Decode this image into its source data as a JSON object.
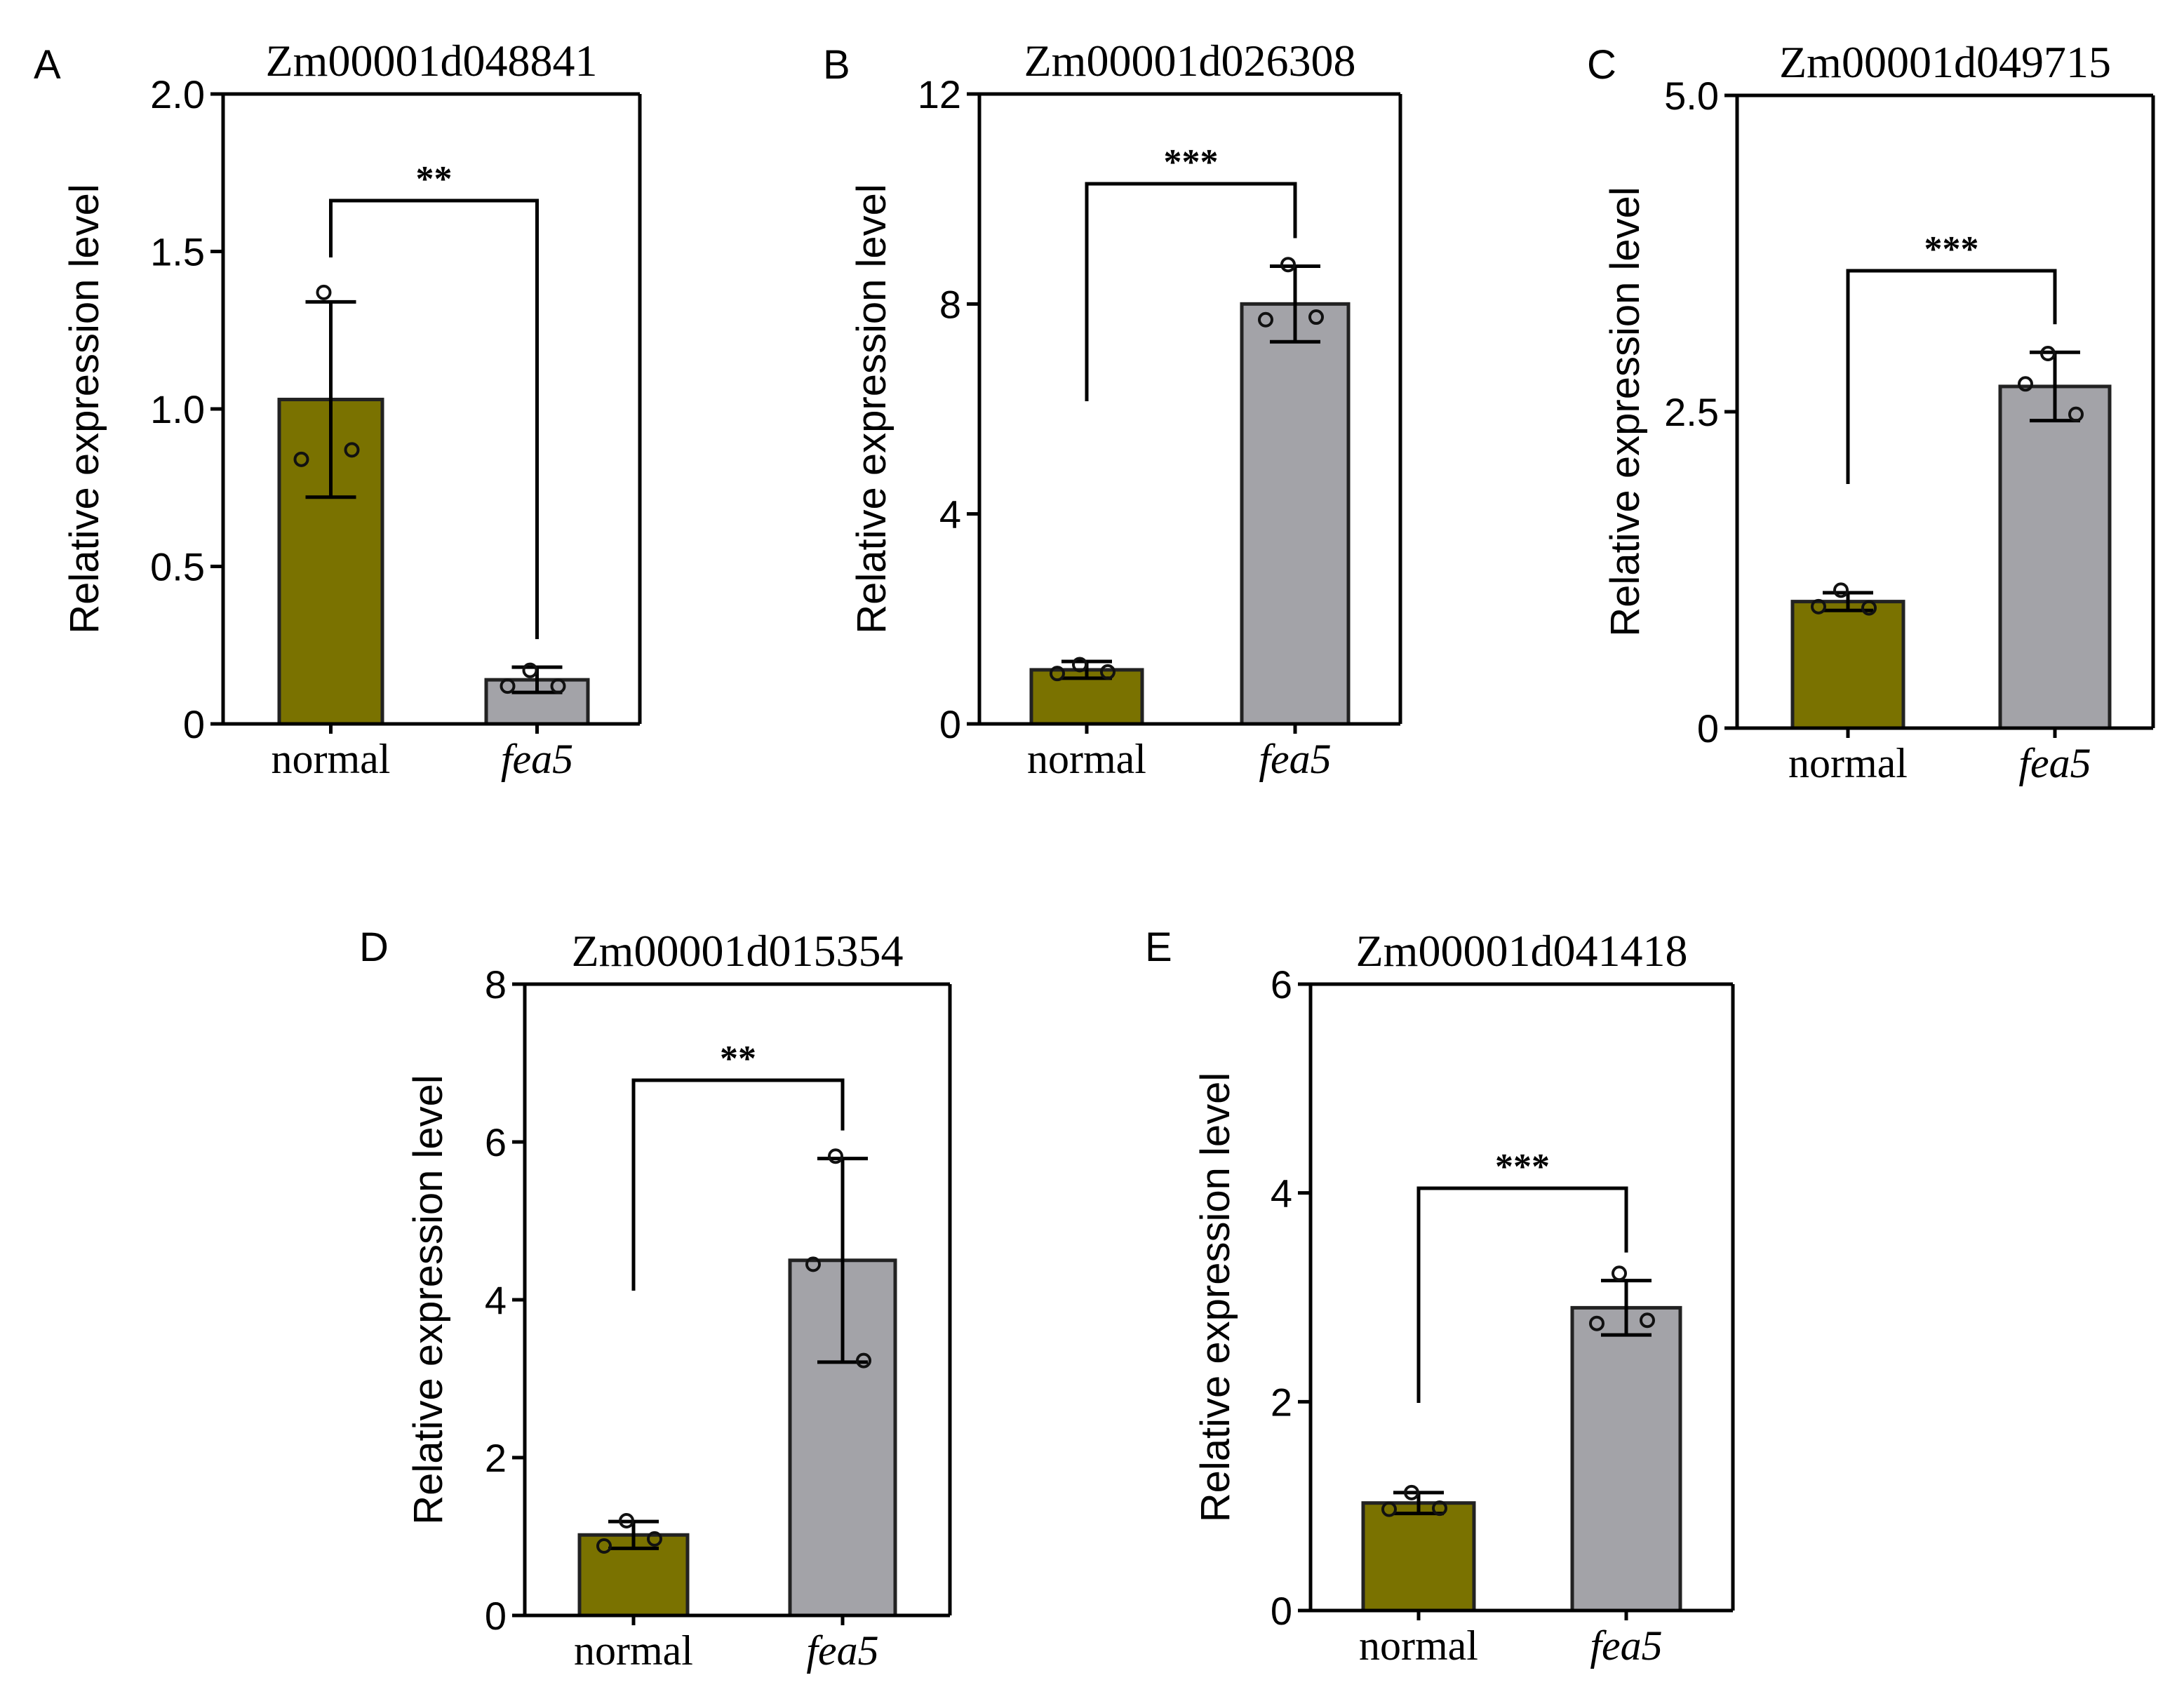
{
  "chart_data": [
    {
      "type": "bar",
      "panel": "A",
      "title": "Zm00001d048841",
      "ylabel": "Relative expression level",
      "xlabel": "",
      "categories": [
        "normal",
        "fea5"
      ],
      "values": [
        1.03,
        0.14
      ],
      "errors": [
        0.31,
        0.04
      ],
      "points": [
        [
          1.37,
          0.84,
          0.87
        ],
        [
          0.17,
          0.12,
          0.12
        ]
      ],
      "ylim": [
        0,
        2.0
      ],
      "yticks": [
        0,
        0.5,
        1.0,
        1.5,
        2.0
      ],
      "ytick_labels": [
        "0",
        "0.5",
        "1.0",
        "1.5",
        "2.0"
      ],
      "significance": "**",
      "colors": [
        "#7a7200",
        "#a3a3a8"
      ]
    },
    {
      "type": "bar",
      "panel": "B",
      "title": "Zm00001d026308",
      "ylabel": "Relative expression level",
      "xlabel": "",
      "categories": [
        "normal",
        "fea5"
      ],
      "values": [
        1.03,
        8.0
      ],
      "errors": [
        0.16,
        0.72
      ],
      "points": [
        [
          1.13,
          0.96,
          0.99
        ],
        [
          8.75,
          7.7,
          7.75
        ]
      ],
      "ylim": [
        0,
        12
      ],
      "yticks": [
        0,
        4,
        8,
        12
      ],
      "ytick_labels": [
        "0",
        "4",
        "8",
        "12"
      ],
      "significance": "***",
      "colors": [
        "#7a7200",
        "#a3a3a8"
      ]
    },
    {
      "type": "bar",
      "panel": "C",
      "title": "Zm00001d049715",
      "ylabel": "Relative expression level",
      "xlabel": "",
      "categories": [
        "normal",
        "fea5"
      ],
      "values": [
        1.0,
        2.7
      ],
      "errors": [
        0.07,
        0.27
      ],
      "points": [
        [
          1.09,
          0.96,
          0.95
        ],
        [
          2.96,
          2.72,
          2.48
        ]
      ],
      "ylim": [
        0,
        5.0
      ],
      "yticks": [
        0,
        2.5,
        5.0
      ],
      "ytick_labels": [
        "0",
        "2.5",
        "5.0"
      ],
      "significance": "***",
      "colors": [
        "#7a7200",
        "#a3a3a8"
      ]
    },
    {
      "type": "bar",
      "panel": "D",
      "title": "Zm00001d015354",
      "ylabel": "Relative expression level",
      "xlabel": "",
      "categories": [
        "normal",
        "fea5"
      ],
      "values": [
        1.02,
        4.5
      ],
      "errors": [
        0.17,
        1.29
      ],
      "points": [
        [
          1.2,
          0.88,
          0.97
        ],
        [
          5.82,
          4.45,
          3.23
        ]
      ],
      "ylim": [
        0,
        8
      ],
      "yticks": [
        0,
        2,
        4,
        6,
        8
      ],
      "ytick_labels": [
        "0",
        "2",
        "4",
        "6",
        "8"
      ],
      "significance": "**",
      "colors": [
        "#7a7200",
        "#a3a3a8"
      ]
    },
    {
      "type": "bar",
      "panel": "E",
      "title": "Zm00001d041418",
      "ylabel": "Relative expression level",
      "xlabel": "",
      "categories": [
        "normal",
        "fea5"
      ],
      "values": [
        1.03,
        2.9
      ],
      "errors": [
        0.1,
        0.26
      ],
      "points": [
        [
          1.13,
          0.97,
          0.98
        ],
        [
          3.23,
          2.75,
          2.78
        ]
      ],
      "ylim": [
        0,
        6
      ],
      "yticks": [
        0,
        2,
        4,
        6
      ],
      "ytick_labels": [
        "0",
        "2",
        "4",
        "6"
      ],
      "significance": "***",
      "colors": [
        "#7a7200",
        "#a3a3a8"
      ]
    }
  ]
}
